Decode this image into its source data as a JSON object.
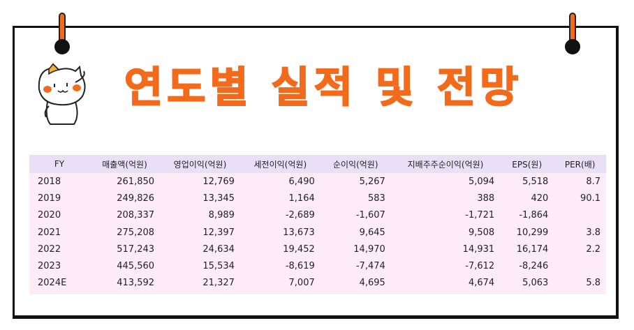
{
  "title": "연도별 실적 및 전망",
  "colors": {
    "accent": "#f26a1b",
    "header_bg": "#e8e0f7",
    "row_bg": "#fdebf7"
  },
  "table": {
    "headers": [
      "FY",
      "매출액(억원)",
      "영업이익(억원)",
      "세전이익(억원)",
      "순이익(억원)",
      "지배주주순이익(억원)",
      "EPS(원)",
      "PER(배)"
    ],
    "rows": [
      [
        "2018",
        "261,850",
        "12,769",
        "6,490",
        "5,267",
        "5,094",
        "5,518",
        "8.7"
      ],
      [
        "2019",
        "249,826",
        "13,345",
        "1,164",
        "583",
        "388",
        "420",
        "90.1"
      ],
      [
        "2020",
        "208,337",
        "8,989",
        "-2,689",
        "-1,607",
        "-1,721",
        "-1,864",
        ""
      ],
      [
        "2021",
        "275,208",
        "12,397",
        "13,673",
        "9,645",
        "9,508",
        "10,299",
        "3.8"
      ],
      [
        "2022",
        "517,243",
        "24,634",
        "19,452",
        "14,970",
        "14,931",
        "16,174",
        "2.2"
      ],
      [
        "2023",
        "445,560",
        "15,534",
        "-8,619",
        "-7,474",
        "-7,612",
        "-8,246",
        ""
      ],
      [
        "2024E",
        "413,592",
        "21,327",
        "7,007",
        "4,695",
        "4,674",
        "5,063",
        "5.8"
      ]
    ]
  }
}
